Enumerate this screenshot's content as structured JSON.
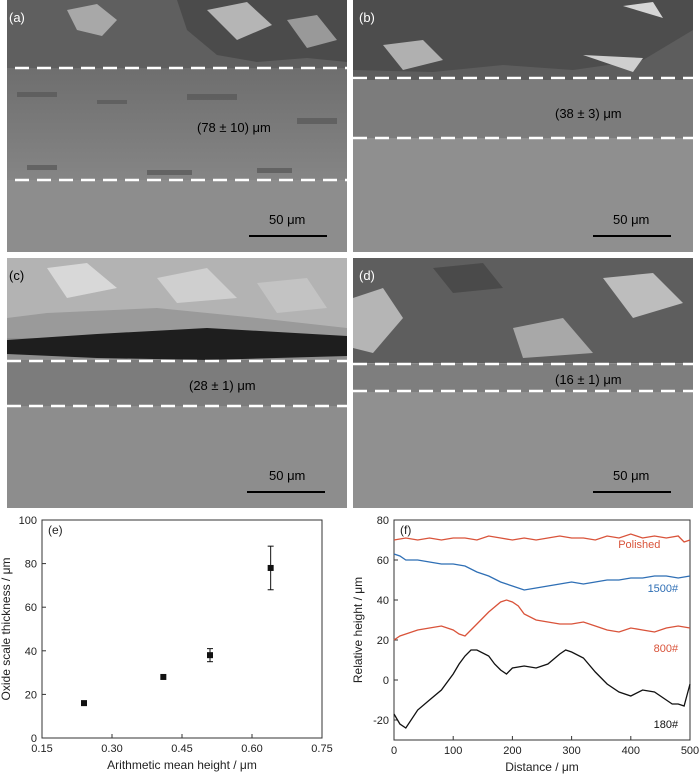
{
  "micrographs": [
    {
      "letter": "(a)",
      "thickness": "(78 ± 10) μm",
      "scalebar": "50 μm"
    },
    {
      "letter": "(b)",
      "thickness": "(38 ± 3) μm",
      "scalebar": "50 μm"
    },
    {
      "letter": "(c)",
      "thickness": "(28 ± 1) μm",
      "scalebar": "50 μm"
    },
    {
      "letter": "(d)",
      "thickness": "(16 ± 1) μm",
      "scalebar": "50 μm"
    }
  ],
  "chart_data": [
    {
      "panel": "(e)",
      "type": "scatter",
      "xlabel": "Arithmetic mean height / μm",
      "ylabel": "Oxide scale thickness / μm",
      "xlim": [
        0.15,
        0.75
      ],
      "ylim": [
        0,
        100
      ],
      "xticks": [
        "0.15",
        "0.30",
        "0.45",
        "0.60",
        "0.75"
      ],
      "yticks": [
        "0",
        "20",
        "40",
        "60",
        "80",
        "100"
      ],
      "points": [
        {
          "x": 0.24,
          "y": 16,
          "err": 0
        },
        {
          "x": 0.41,
          "y": 28,
          "err": 0
        },
        {
          "x": 0.51,
          "y": 38,
          "err": 3
        },
        {
          "x": 0.64,
          "y": 78,
          "err": 10
        }
      ],
      "grid": false
    },
    {
      "panel": "(f)",
      "type": "line",
      "xlabel": "Distance / μm",
      "ylabel": "Relative height / μm",
      "xlim": [
        0,
        500
      ],
      "ylim": [
        -30,
        80
      ],
      "xticks": [
        "0",
        "100",
        "200",
        "300",
        "400",
        "500"
      ],
      "yticks": [
        "-20",
        "0",
        "20",
        "40",
        "60",
        "80"
      ],
      "grid": false,
      "series": [
        {
          "name": "Polished",
          "color": "#d9533a",
          "x": [
            0,
            20,
            40,
            60,
            80,
            100,
            120,
            140,
            160,
            180,
            200,
            220,
            240,
            260,
            280,
            300,
            320,
            340,
            360,
            380,
            400,
            420,
            440,
            460,
            480,
            490,
            500
          ],
          "y": [
            70,
            71,
            70,
            71,
            70,
            71,
            71,
            70,
            72,
            71,
            70,
            71,
            70,
            71,
            72,
            71,
            71,
            70,
            72,
            71,
            73,
            71,
            72,
            71,
            72,
            69,
            70
          ]
        },
        {
          "name": "1500#",
          "color": "#2f6fb5",
          "x": [
            0,
            10,
            20,
            40,
            60,
            80,
            100,
            120,
            140,
            160,
            180,
            200,
            220,
            240,
            260,
            280,
            300,
            320,
            340,
            360,
            380,
            400,
            420,
            440,
            460,
            480,
            500
          ],
          "y": [
            63,
            62,
            60,
            60,
            59,
            58,
            58,
            57,
            54,
            52,
            49,
            47,
            45,
            46,
            47,
            48,
            49,
            48,
            49,
            50,
            50,
            51,
            51,
            52,
            52,
            51,
            52
          ]
        },
        {
          "name": "800#",
          "color": "#d9533a",
          "x": [
            0,
            10,
            20,
            40,
            60,
            80,
            100,
            110,
            120,
            140,
            160,
            180,
            190,
            200,
            210,
            220,
            240,
            260,
            280,
            300,
            320,
            340,
            360,
            380,
            400,
            420,
            440,
            460,
            480,
            500
          ],
          "y": [
            20,
            22,
            23,
            25,
            26,
            27,
            25,
            23,
            22,
            28,
            34,
            39,
            40,
            39,
            37,
            33,
            30,
            29,
            28,
            28,
            29,
            27,
            25,
            24,
            26,
            25,
            24,
            26,
            27,
            26
          ]
        },
        {
          "name": "180#",
          "color": "#111111",
          "x": [
            0,
            10,
            20,
            40,
            60,
            80,
            100,
            110,
            120,
            130,
            140,
            160,
            170,
            180,
            190,
            200,
            220,
            240,
            260,
            280,
            290,
            300,
            320,
            340,
            360,
            380,
            400,
            420,
            440,
            460,
            470,
            480,
            490,
            500
          ],
          "y": [
            -17,
            -22,
            -24,
            -15,
            -10,
            -5,
            3,
            8,
            12,
            15,
            15,
            12,
            8,
            5,
            3,
            6,
            7,
            6,
            8,
            13,
            15,
            14,
            11,
            4,
            -2,
            -6,
            -8,
            -5,
            -6,
            -10,
            -12,
            -12,
            -13,
            -2
          ]
        }
      ]
    }
  ]
}
